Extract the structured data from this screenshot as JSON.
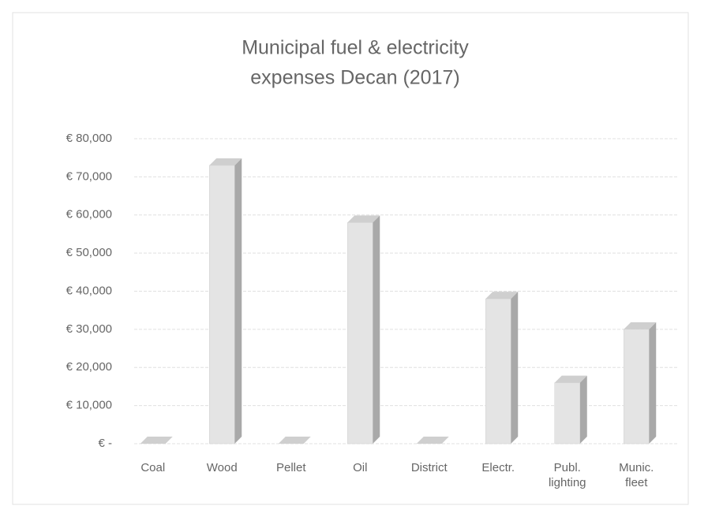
{
  "chart_data": {
    "type": "bar3d",
    "title": [
      "Municipal fuel & electricity",
      "expenses Decan (2017)"
    ],
    "categories": [
      "Coal",
      "Wood",
      "Pellet",
      "Oil",
      "District",
      "Electr.",
      "Publ. lighting",
      "Munic. fleet"
    ],
    "values": [
      0,
      73000,
      0,
      58000,
      0,
      38000,
      16000,
      30000
    ],
    "color": "#e4e4e4",
    "ylim": [
      0,
      80000
    ],
    "yticks": [
      {
        "value": 0,
        "label": "€ -"
      },
      {
        "value": 10000,
        "label": "€ 10,000"
      },
      {
        "value": 20000,
        "label": "€ 20,000"
      },
      {
        "value": 30000,
        "label": "€ 30,000"
      },
      {
        "value": 40000,
        "label": "€ 40,000"
      },
      {
        "value": 50000,
        "label": "€ 50,000"
      },
      {
        "value": 60000,
        "label": "€ 60,000"
      },
      {
        "value": 70000,
        "label": "€ 70,000"
      },
      {
        "value": 80000,
        "label": "€ 80,000"
      }
    ],
    "grid": true
  }
}
